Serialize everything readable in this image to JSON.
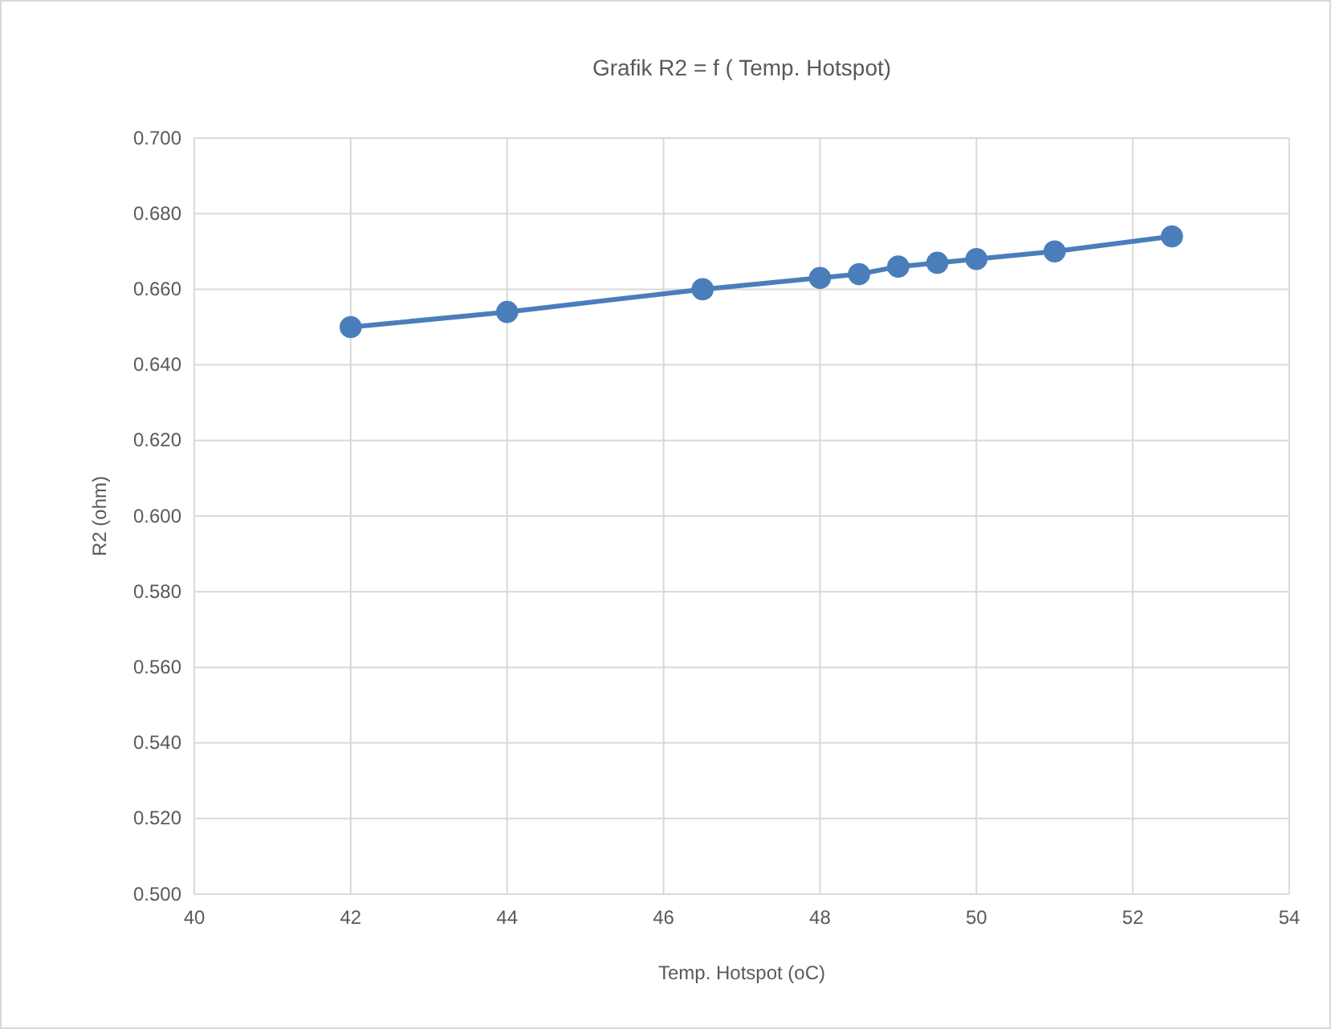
{
  "chart_data": {
    "type": "line",
    "title": "Grafik R2 = f ( Temp. Hotspot)",
    "xlabel": "Temp. Hotspot (oC)",
    "ylabel": "R2 (ohm)",
    "x": [
      42,
      44,
      46.5,
      48,
      48.5,
      49,
      49.5,
      50,
      51,
      52.5
    ],
    "series": [
      {
        "color": "#4a7ebb",
        "values": [
          0.65,
          0.654,
          0.66,
          0.663,
          0.664,
          0.666,
          0.667,
          0.668,
          0.67,
          0.674
        ]
      }
    ],
    "xlim": [
      40,
      54
    ],
    "xticks": [
      40,
      42,
      44,
      46,
      48,
      50,
      52,
      54
    ],
    "ylim": [
      0.5,
      0.7
    ],
    "yticks": [
      {
        "value": 0.5,
        "label": "0.500"
      },
      {
        "value": 0.52,
        "label": "0.520"
      },
      {
        "value": 0.54,
        "label": "0.540"
      },
      {
        "value": 0.56,
        "label": "0.560"
      },
      {
        "value": 0.58,
        "label": "0.580"
      },
      {
        "value": 0.6,
        "label": "0.600"
      },
      {
        "value": 0.62,
        "label": "0.620"
      },
      {
        "value": 0.64,
        "label": "0.640"
      },
      {
        "value": 0.66,
        "label": "0.660"
      },
      {
        "value": 0.68,
        "label": "0.680"
      },
      {
        "value": 0.7,
        "label": "0.700"
      }
    ],
    "grid": true,
    "marker": "circle",
    "line_style": "solid"
  }
}
